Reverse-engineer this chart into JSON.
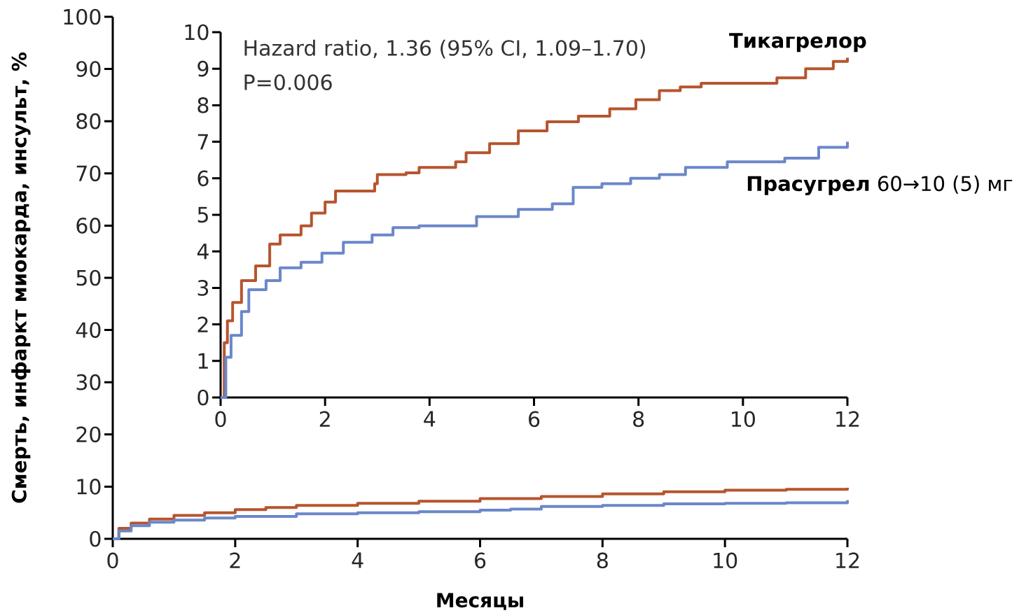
{
  "chart_data": [
    {
      "type": "step",
      "xlabel": "Месяцы",
      "ylabel": "Смерть, инфаркт миокарда, инсульт, %",
      "xlim": [
        0,
        12
      ],
      "ylim": [
        0,
        100
      ],
      "xticks": [
        0,
        2,
        4,
        6,
        8,
        10,
        12
      ],
      "yticks": [
        0,
        10,
        20,
        30,
        40,
        50,
        60,
        70,
        80,
        90,
        100
      ],
      "series": [
        {
          "color": "#b5552f",
          "x": [
            0,
            0.1,
            0.3,
            0.6,
            1,
            1.5,
            2,
            2.5,
            3,
            4,
            5,
            6,
            7,
            8,
            9,
            10,
            11,
            12
          ],
          "values": [
            0,
            2,
            3,
            3.8,
            4.5,
            5.0,
            5.6,
            6.0,
            6.4,
            6.8,
            7.2,
            7.7,
            8.1,
            8.6,
            9.0,
            9.3,
            9.5,
            9.8
          ]
        },
        {
          "color": "#6a87c9",
          "x": [
            0,
            0.1,
            0.3,
            0.6,
            1,
            1.5,
            2,
            3,
            4,
            5,
            6,
            6.5,
            7,
            8,
            9,
            10,
            11,
            12
          ],
          "values": [
            0,
            1.5,
            2.5,
            3.2,
            3.6,
            4.0,
            4.3,
            4.8,
            5.0,
            5.2,
            5.5,
            5.7,
            6.2,
            6.4,
            6.7,
            6.8,
            6.9,
            7.4
          ]
        }
      ]
    },
    {
      "type": "step",
      "xlim": [
        0,
        12
      ],
      "ylim": [
        0,
        10
      ],
      "xticks": [
        0,
        2,
        4,
        6,
        8,
        10,
        12
      ],
      "yticks": [
        0,
        1,
        2,
        3,
        4,
        5,
        6,
        7,
        8,
        9,
        10
      ],
      "annotations": [
        "Hazard ratio, 1.36 (95% CI, 1.09–1.70)",
        "P=0.006"
      ],
      "series": [
        {
          "name": "**Тикагрелор**",
          "color": "#b5552f",
          "x": [
            0,
            0.07,
            0.13,
            0.23,
            0.4,
            0.67,
            0.94,
            1.14,
            1.54,
            1.74,
            2.0,
            2.2,
            2.75,
            2.95,
            3.0,
            3.55,
            3.8,
            4.5,
            4.7,
            5.15,
            5.7,
            6.25,
            6.85,
            7.45,
            7.95,
            8.4,
            8.8,
            9.2,
            10.0,
            10.65,
            11.2,
            11.73,
            12
          ],
          "values": [
            0,
            1.5,
            2.1,
            2.6,
            3.2,
            3.6,
            4.2,
            4.45,
            4.7,
            5.05,
            5.35,
            5.65,
            5.65,
            5.85,
            6.1,
            6.15,
            6.3,
            6.45,
            6.7,
            6.95,
            7.3,
            7.55,
            7.7,
            7.9,
            8.15,
            8.4,
            8.5,
            8.6,
            8.6,
            8.75,
            9.0,
            9.2,
            9.3
          ]
        },
        {
          "name": "**Прасугрел** 60→10 (5) мг",
          "color": "#6a87c9",
          "x": [
            0,
            0.1,
            0.2,
            0.4,
            0.54,
            0.87,
            1.14,
            1.54,
            1.94,
            2.35,
            2.9,
            3.3,
            3.8,
            4.35,
            4.9,
            5.7,
            6.35,
            6.75,
            7.3,
            7.85,
            8.4,
            8.9,
            9.7,
            10.8,
            11.45,
            12
          ],
          "values": [
            0,
            1.1,
            1.7,
            2.35,
            2.95,
            3.2,
            3.55,
            3.7,
            3.95,
            4.25,
            4.45,
            4.65,
            4.7,
            4.7,
            4.95,
            5.15,
            5.3,
            5.75,
            5.85,
            6.0,
            6.1,
            6.3,
            6.45,
            6.55,
            6.85,
            7.0
          ]
        }
      ]
    }
  ]
}
